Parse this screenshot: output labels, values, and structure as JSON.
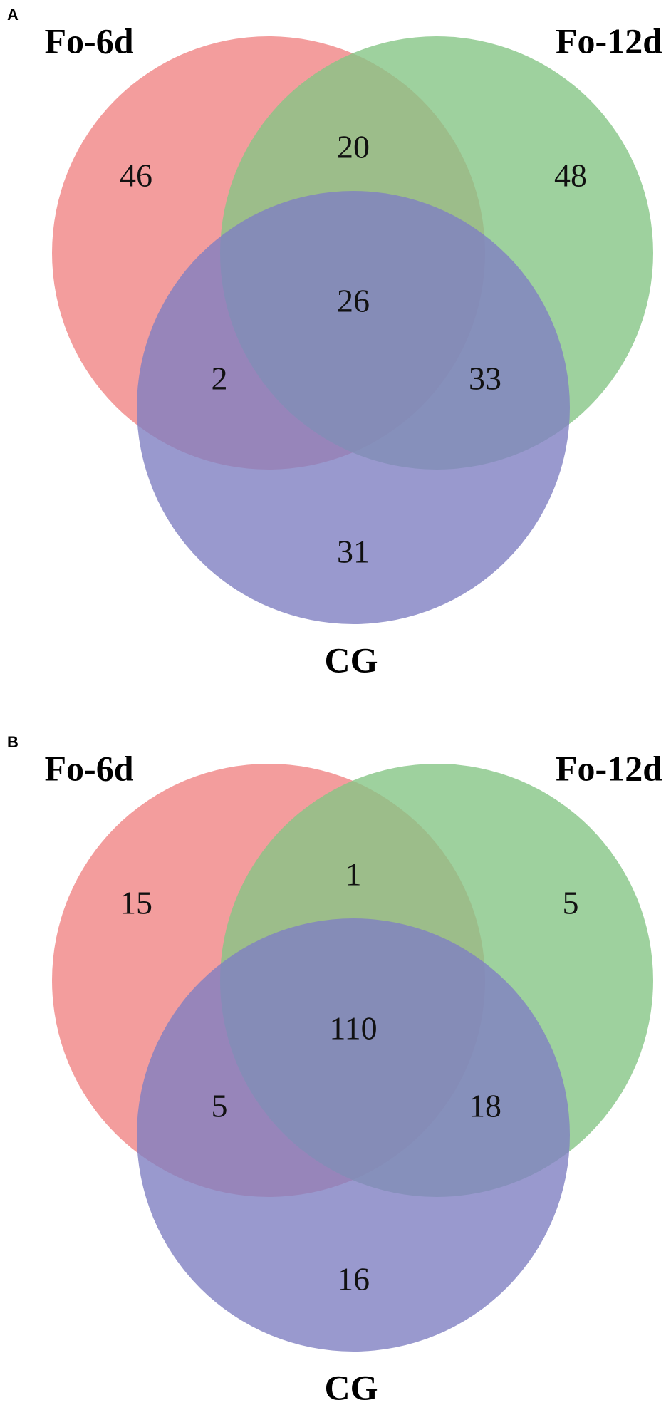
{
  "chart_data": [
    {
      "type": "venn",
      "panel_label": "A",
      "sets": [
        {
          "name": "Fo-6d",
          "color": "#f08585"
        },
        {
          "name": "Fo-12d",
          "color": "#86c686"
        },
        {
          "name": "CG",
          "color": "#7f7fc2"
        }
      ],
      "values": [
        46,
        20,
        48,
        26,
        2,
        33,
        31
      ]
    },
    {
      "type": "venn",
      "panel_label": "B",
      "sets": [
        {
          "name": "Fo-6d",
          "color": "#f08585"
        },
        {
          "name": "Fo-12d",
          "color": "#86c686"
        },
        {
          "name": "CG",
          "color": "#7f7fc2"
        }
      ],
      "values": [
        15,
        1,
        5,
        110,
        5,
        18,
        16
      ]
    }
  ]
}
